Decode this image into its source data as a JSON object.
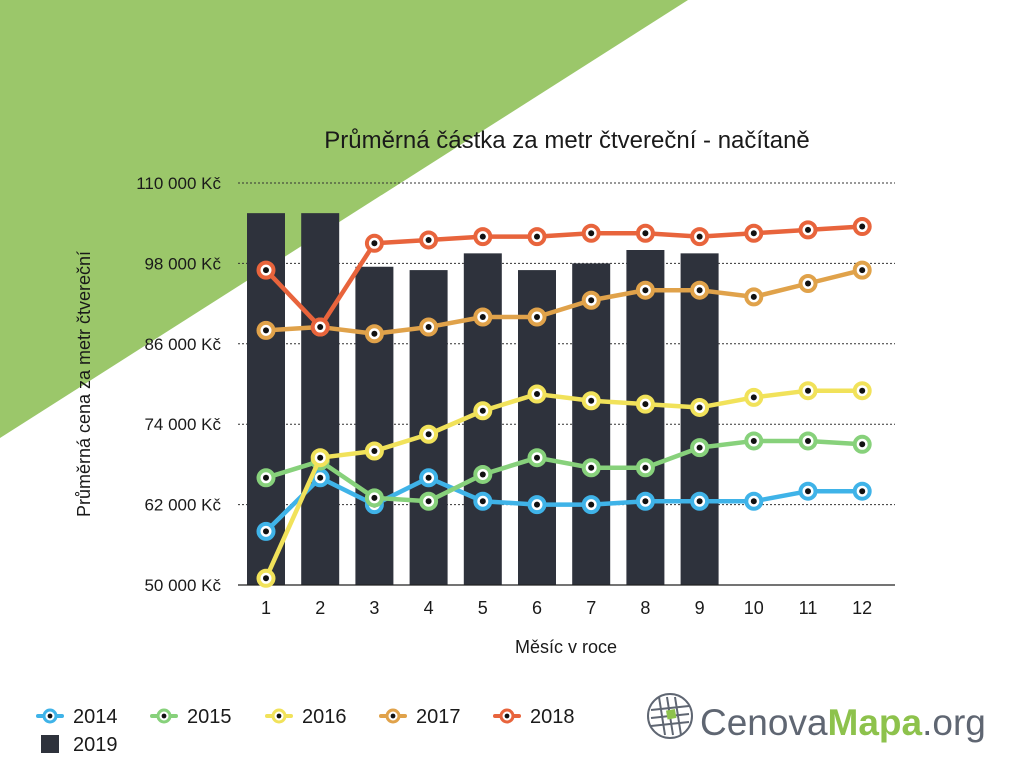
{
  "colors": {
    "background_band": "#9bc76a",
    "bar": "#2e323c",
    "grid": "#333333",
    "logo_gray": "#5f6672",
    "logo_green": "#8dc24c"
  },
  "chart_data": {
    "type": "bar+line",
    "title": "Průměrná částka za metr čtvereční - načítaně",
    "xlabel": "Měsíc v roce",
    "ylabel": "Průměrná cena za metr čtvereční",
    "x": [
      "1",
      "2",
      "3",
      "4",
      "5",
      "6",
      "7",
      "8",
      "9",
      "10",
      "11",
      "12"
    ],
    "yticks": [
      "50 000 Kč",
      "62 000 Kč",
      "74 000 Kč",
      "86 000 Kč",
      "98 000 Kč",
      "110 000 Kč"
    ],
    "ytick_values": [
      50000,
      62000,
      74000,
      86000,
      98000,
      110000
    ],
    "ylim": [
      50000,
      110000
    ],
    "grid": "horizontal dotted",
    "legend_position": "bottom-left",
    "bars": {
      "name": "2019",
      "color": "#2e323c",
      "values": [
        105500,
        105500,
        97500,
        97000,
        99500,
        97000,
        98000,
        100000,
        99500
      ]
    },
    "series": [
      {
        "name": "2014",
        "color": "#3fb3e8",
        "values": [
          58000,
          66000,
          62000,
          66000,
          62500,
          62000,
          62000,
          62500,
          62500,
          62500,
          64000,
          64000
        ]
      },
      {
        "name": "2015",
        "color": "#87d17b",
        "values": [
          66000,
          68500,
          63000,
          62500,
          66500,
          69000,
          67500,
          67500,
          70500,
          71500,
          71500,
          71000
        ]
      },
      {
        "name": "2016",
        "color": "#f1e25a",
        "values": [
          51000,
          69000,
          70000,
          72500,
          76000,
          78500,
          77500,
          77000,
          76500,
          78000,
          79000,
          79000
        ]
      },
      {
        "name": "2017",
        "color": "#e0a24a",
        "values": [
          88000,
          88500,
          87500,
          88500,
          90000,
          90000,
          92500,
          94000,
          94000,
          93000,
          95000,
          97000
        ]
      },
      {
        "name": "2018",
        "color": "#e8643c",
        "values": [
          97000,
          88500,
          101000,
          101500,
          102000,
          102000,
          102500,
          102500,
          102000,
          102500,
          103000,
          103500
        ]
      }
    ]
  },
  "legend": {
    "items": [
      {
        "label": "2014",
        "color": "#3fb3e8",
        "kind": "line"
      },
      {
        "label": "2015",
        "color": "#87d17b",
        "kind": "line"
      },
      {
        "label": "2016",
        "color": "#f1e25a",
        "kind": "line"
      },
      {
        "label": "2017",
        "color": "#e0a24a",
        "kind": "line"
      },
      {
        "label": "2018",
        "color": "#e8643c",
        "kind": "line"
      },
      {
        "label": "2019",
        "color": "#2e323c",
        "kind": "bar"
      }
    ]
  },
  "logo": {
    "icon": "globe-grid-icon",
    "part1": "Cenova",
    "part2": "Mapa",
    "part3": ".org"
  }
}
